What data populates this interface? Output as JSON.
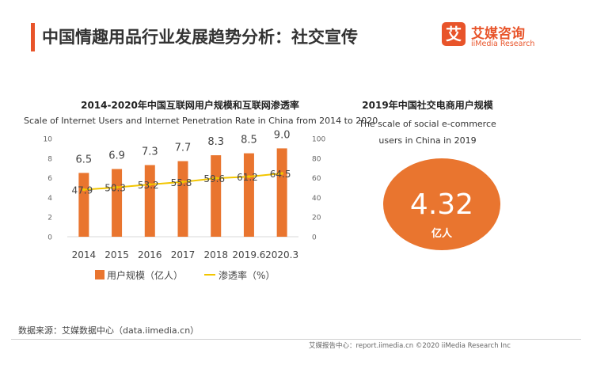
{
  "header": {
    "title": "中国情趣用品行业发展趋势分析：社交宣传",
    "logo_mark": "艾",
    "logo_cn": "艾媒咨询",
    "logo_en": "iiMedia Research"
  },
  "left_chart": {
    "title_cn": "2014-2020年中国互联网用户规模和互联网渗透率",
    "title_en": "Scale of Internet Users and Internet Penetration Rate in China from 2014 to 2020"
  },
  "right_chart": {
    "title_cn": "2019年中国社交电商用户规模",
    "subtitle_en": "The scale of social e-commerce users in China in 2019",
    "value": "4.32",
    "unit": "亿人"
  },
  "colors": {
    "accent": "#e8542a",
    "bar": "#e9752f",
    "line": "#f2c500"
  },
  "chart_data": [
    {
      "type": "bar",
      "categories": [
        "2014",
        "2015",
        "2016",
        "2017",
        "2018",
        "2019.6",
        "2020.3"
      ],
      "series": [
        {
          "name": "用户规模（亿人）",
          "type": "bar",
          "axis": "left",
          "values": [
            6.5,
            6.9,
            7.3,
            7.7,
            8.3,
            8.5,
            9.0
          ],
          "labels": [
            "6.5",
            "6.9",
            "7.3",
            "7.7",
            "8.3",
            "8.5",
            "9.0"
          ]
        },
        {
          "name": "渗透率（%）",
          "type": "line",
          "axis": "right",
          "values": [
            47.9,
            50.3,
            53.2,
            55.8,
            59.6,
            61.2,
            64.5
          ],
          "labels": [
            "47.9",
            "50.3",
            "53.2",
            "55.8",
            "59.6",
            "61.2",
            "64.5"
          ]
        }
      ],
      "ylim": [
        0,
        10
      ],
      "yticks": [
        0,
        2,
        4,
        6,
        8,
        10
      ],
      "y2lim": [
        0,
        100
      ],
      "y2ticks": [
        0,
        20,
        40,
        60,
        80,
        100
      ],
      "legend": "bottom",
      "grid": false
    },
    {
      "type": "bubble",
      "value": 4.32,
      "unit": "亿人"
    }
  ],
  "footer": {
    "source": "数据来源：艾媒数据中心（data.iimedia.cn）",
    "credit": "艾媒报告中心：report.iimedia.cn   ©2020  iiMedia Research  Inc"
  }
}
